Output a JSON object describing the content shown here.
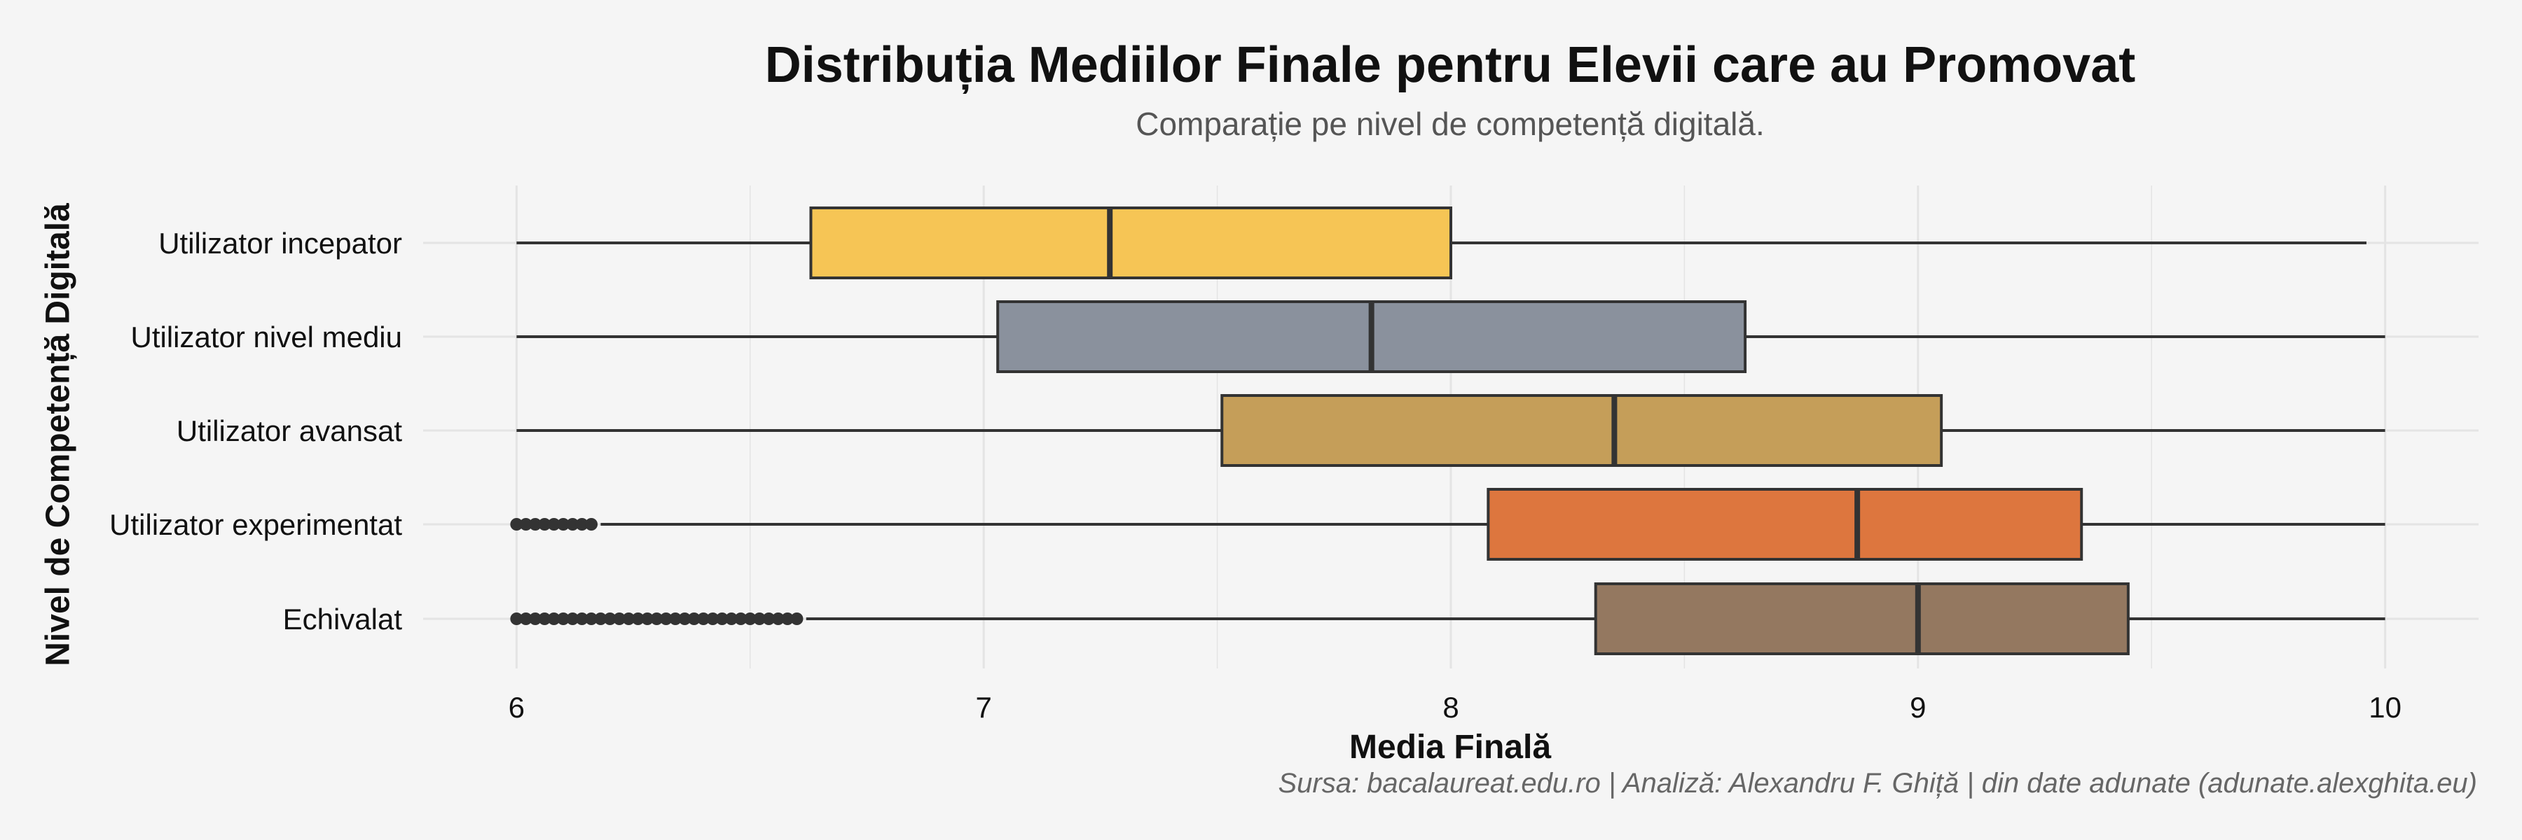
{
  "title": "Distribuția Mediilor Finale pentru Elevii care au Promovat",
  "subtitle": "Comparație pe nivel de competență digitală.",
  "caption": "Sursa: bacalaureat.edu.ro | Analiză: Alexandru F. Ghiță | din date adunate (adunate.alexghita.eu)",
  "chart_data": {
    "type": "boxplot",
    "orientation": "horizontal",
    "title": "Distribuția Mediilor Finale pentru Elevii care au Promovat",
    "subtitle": "Comparație pe nivel de competență digitală.",
    "xlabel": "Media Finală",
    "ylabel": "Nivel de Competență Digitală",
    "xlim": [
      5.8,
      10.2
    ],
    "xticks": [
      6,
      7,
      8,
      9,
      10
    ],
    "grid": true,
    "legend": "none",
    "categories": [
      "Utilizator incepator",
      "Utilizator nivel mediu",
      "Utilizator avansat",
      "Utilizator experimentat",
      "Echivalat"
    ],
    "boxes": [
      {
        "category": "Utilizator incepator",
        "whisker_low": 6.0,
        "q1": 6.63,
        "median": 7.27,
        "q3": 8.0,
        "whisker_high": 9.96,
        "color": "#f6c555",
        "outliers": []
      },
      {
        "category": "Utilizator nivel mediu",
        "whisker_low": 6.0,
        "q1": 7.03,
        "median": 7.83,
        "q3": 8.63,
        "whisker_high": 10.0,
        "color": "#8a919d",
        "outliers": []
      },
      {
        "category": "Utilizator avansat",
        "whisker_low": 6.0,
        "q1": 7.51,
        "median": 8.35,
        "q3": 9.05,
        "whisker_high": 10.0,
        "color": "#c59e59",
        "outliers": []
      },
      {
        "category": "Utilizator experimentat",
        "whisker_low": 6.18,
        "q1": 8.08,
        "median": 8.87,
        "q3": 9.35,
        "whisker_high": 10.0,
        "color": "#dd763e",
        "outliers": [
          6.0,
          6.02,
          6.04,
          6.06,
          6.08,
          6.1,
          6.12,
          6.14,
          6.16
        ]
      },
      {
        "category": "Echivalat",
        "whisker_low": 6.62,
        "q1": 8.31,
        "median": 9.0,
        "q3": 9.45,
        "whisker_high": 10.0,
        "color": "#947860",
        "outliers": [
          6.0,
          6.02,
          6.04,
          6.06,
          6.08,
          6.1,
          6.12,
          6.14,
          6.16,
          6.18,
          6.2,
          6.22,
          6.24,
          6.26,
          6.28,
          6.3,
          6.32,
          6.34,
          6.36,
          6.38,
          6.4,
          6.42,
          6.44,
          6.46,
          6.48,
          6.5,
          6.52,
          6.54,
          6.56,
          6.58,
          6.6
        ]
      }
    ],
    "colors": {
      "box_border": "#333333",
      "whisker": "#333333",
      "grid": "#e4e4e4",
      "background": "#f5f5f5"
    }
  }
}
